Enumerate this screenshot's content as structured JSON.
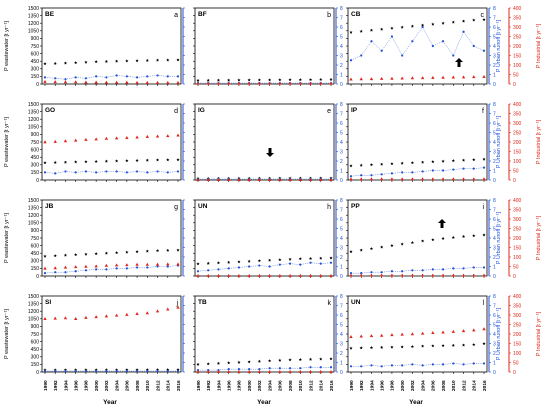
{
  "figure": {
    "y_left_label": "P wastewater [t yr⁻¹]",
    "y_right_blue_label": "P Urban runoff [t yr⁻¹]",
    "y_right_red_label": "P Industrial [t yr⁻¹]",
    "x_label": "Year",
    "colors": {
      "wastewater": "#000000",
      "urban": "#1f4fd6",
      "industrial": "#e0261b"
    }
  },
  "chart_data": [
    {
      "id": "BE",
      "letter": "a",
      "type": "scatter",
      "x": [
        1990,
        1992,
        1994,
        1996,
        1998,
        2000,
        2002,
        2004,
        2006,
        2008,
        2010,
        2012,
        2014,
        2016
      ],
      "xlim": [
        1990,
        2016
      ],
      "ylim_left": [
        0,
        1500
      ],
      "ylim_right_blue": [
        0,
        8
      ],
      "ylim_right_red": [
        0,
        400
      ],
      "series": [
        {
          "key": "wastewater",
          "axis": "left",
          "values": [
            400,
            405,
            412,
            420,
            430,
            440,
            445,
            450,
            455,
            460,
            465,
            470,
            472,
            475
          ]
        },
        {
          "key": "urban",
          "axis": "blue",
          "values": [
            0.7,
            0.6,
            0.5,
            0.7,
            0.6,
            0.8,
            0.7,
            0.9,
            0.8,
            0.7,
            0.8,
            0.9,
            0.8,
            0.8
          ]
        },
        {
          "key": "industrial",
          "axis": "red",
          "values": [
            12,
            11,
            10,
            10,
            9,
            9,
            8,
            8,
            8,
            7,
            7,
            7,
            7,
            7
          ]
        }
      ]
    },
    {
      "id": "BF",
      "letter": "b",
      "type": "scatter",
      "x": [
        1990,
        1992,
        1994,
        1996,
        1998,
        2000,
        2002,
        2004,
        2006,
        2008,
        2010,
        2012,
        2014,
        2016
      ],
      "xlim": [
        1990,
        2016
      ],
      "ylim_left": [
        0,
        1500
      ],
      "ylim_right_blue": [
        0,
        8
      ],
      "ylim_right_red": [
        0,
        400
      ],
      "series": [
        {
          "key": "wastewater",
          "axis": "left",
          "values": [
            70,
            72,
            74,
            75,
            77,
            78,
            80,
            80,
            82,
            83,
            85,
            86,
            88,
            90
          ]
        },
        {
          "key": "urban",
          "axis": "blue",
          "values": [
            0.1,
            0.1,
            0.1,
            0.1,
            0.1,
            0.1,
            0.1,
            0.1,
            0.1,
            0.1,
            0.1,
            0.1,
            0.1,
            0.1
          ]
        },
        {
          "key": "industrial",
          "axis": "red",
          "values": [
            3,
            3,
            3,
            3,
            3,
            3,
            3,
            3,
            3,
            3,
            3,
            3,
            3,
            3
          ]
        }
      ]
    },
    {
      "id": "CB",
      "letter": "c",
      "type": "scatter",
      "x": [
        1990,
        1992,
        1994,
        1996,
        1998,
        2000,
        2002,
        2004,
        2006,
        2008,
        2010,
        2012,
        2014,
        2016
      ],
      "xlim": [
        1990,
        2016
      ],
      "ylim_left": [
        0,
        1500
      ],
      "ylim_right_blue": [
        0,
        8
      ],
      "ylim_right_red": [
        0,
        400
      ],
      "series": [
        {
          "key": "wastewater",
          "axis": "left",
          "values": [
            1020,
            1040,
            1060,
            1080,
            1100,
            1120,
            1140,
            1160,
            1180,
            1200,
            1220,
            1240,
            1260,
            1270
          ]
        },
        {
          "key": "urban",
          "axis": "blue",
          "values": [
            2.5,
            3.0,
            4.5,
            3.5,
            5.0,
            3.0,
            4.5,
            6.0,
            4.0,
            4.5,
            3.0,
            5.5,
            4.0,
            3.5
          ]
        },
        {
          "key": "industrial",
          "axis": "red",
          "values": [
            25,
            26,
            27,
            28,
            29,
            30,
            31,
            32,
            33,
            34,
            35,
            36,
            37,
            38
          ]
        }
      ]
    },
    {
      "id": "GO",
      "letter": "d",
      "type": "scatter",
      "x": [
        1990,
        1992,
        1994,
        1996,
        1998,
        2000,
        2002,
        2004,
        2006,
        2008,
        2010,
        2012,
        2014,
        2016
      ],
      "xlim": [
        1990,
        2016
      ],
      "ylim_left": [
        0,
        1500
      ],
      "ylim_right_blue": [
        0,
        8
      ],
      "ylim_right_red": [
        0,
        400
      ],
      "series": [
        {
          "key": "wastewater",
          "axis": "left",
          "values": [
            340,
            345,
            350,
            355,
            360,
            365,
            370,
            375,
            380,
            385,
            390,
            395,
            398,
            400
          ]
        },
        {
          "key": "urban",
          "axis": "blue",
          "values": [
            0.8,
            0.7,
            0.9,
            0.8,
            0.9,
            0.8,
            0.9,
            0.9,
            0.8,
            0.9,
            0.8,
            0.9,
            0.8,
            0.9
          ]
        },
        {
          "key": "industrial",
          "axis": "red",
          "values": [
            200,
            202,
            205,
            208,
            212,
            215,
            218,
            220,
            222,
            225,
            228,
            230,
            232,
            235
          ]
        }
      ]
    },
    {
      "id": "IG",
      "letter": "e",
      "type": "scatter",
      "x": [
        1990,
        1992,
        1994,
        1996,
        1998,
        2000,
        2002,
        2004,
        2006,
        2008,
        2010,
        2012,
        2014,
        2016
      ],
      "xlim": [
        1990,
        2016
      ],
      "ylim_left": [
        0,
        1500
      ],
      "ylim_right_blue": [
        0,
        8
      ],
      "ylim_right_red": [
        0,
        400
      ],
      "series": [
        {
          "key": "wastewater",
          "axis": "left",
          "values": [
            30,
            30,
            31,
            31,
            32,
            32,
            33,
            33,
            34,
            34,
            35,
            35,
            36,
            36
          ]
        },
        {
          "key": "urban",
          "axis": "blue",
          "values": [
            0.1,
            0.1,
            0.1,
            0.1,
            0.1,
            0.1,
            0.1,
            0.1,
            0.1,
            0.1,
            0.1,
            0.1,
            0.1,
            0.1
          ]
        },
        {
          "key": "industrial",
          "axis": "red",
          "values": [
            1,
            1,
            1,
            1,
            1,
            1,
            1,
            1,
            1,
            1,
            1,
            1,
            1,
            1
          ]
        }
      ]
    },
    {
      "id": "IP",
      "letter": "f",
      "type": "scatter",
      "x": [
        1990,
        1992,
        1994,
        1996,
        1998,
        2000,
        2002,
        2004,
        2006,
        2008,
        2010,
        2012,
        2014,
        2016
      ],
      "xlim": [
        1990,
        2016
      ],
      "ylim_left": [
        0,
        1500
      ],
      "ylim_right_blue": [
        0,
        8
      ],
      "ylim_right_red": [
        0,
        400
      ],
      "series": [
        {
          "key": "wastewater",
          "axis": "left",
          "values": [
            280,
            290,
            300,
            310,
            320,
            330,
            340,
            350,
            360,
            370,
            380,
            390,
            400,
            410
          ]
        },
        {
          "key": "urban",
          "axis": "blue",
          "values": [
            0.4,
            0.5,
            0.5,
            0.6,
            0.7,
            0.8,
            0.8,
            0.9,
            1.0,
            1.0,
            1.1,
            1.2,
            1.2,
            1.3
          ]
        },
        {
          "key": "industrial",
          "axis": "red",
          "values": [
            5,
            5,
            5,
            5,
            5,
            5,
            5,
            5,
            5,
            5,
            5,
            5,
            5,
            5
          ]
        }
      ]
    },
    {
      "id": "JB",
      "letter": "g",
      "type": "scatter",
      "x": [
        1990,
        1992,
        1994,
        1996,
        1998,
        2000,
        2002,
        2004,
        2006,
        2008,
        2010,
        2012,
        2014,
        2016
      ],
      "xlim": [
        1990,
        2016
      ],
      "ylim_left": [
        0,
        1500
      ],
      "ylim_right_blue": [
        0,
        8
      ],
      "ylim_right_red": [
        0,
        400
      ],
      "series": [
        {
          "key": "wastewater",
          "axis": "left",
          "values": [
            390,
            400,
            410,
            420,
            430,
            440,
            450,
            460,
            470,
            480,
            490,
            500,
            505,
            510
          ]
        },
        {
          "key": "urban",
          "axis": "blue",
          "values": [
            0.3,
            0.4,
            0.4,
            0.5,
            0.6,
            0.7,
            0.7,
            0.8,
            0.8,
            0.9,
            0.9,
            1.0,
            1.0,
            1.1
          ]
        },
        {
          "key": "industrial",
          "axis": "red",
          "values": [
            40,
            42,
            45,
            48,
            50,
            52,
            55,
            57,
            58,
            60,
            60,
            61,
            62,
            62
          ]
        }
      ]
    },
    {
      "id": "UN",
      "letter": "h",
      "type": "scatter",
      "x": [
        1990,
        1992,
        1994,
        1996,
        1998,
        2000,
        2002,
        2004,
        2006,
        2008,
        2010,
        2012,
        2014,
        2016
      ],
      "xlim": [
        1990,
        2016
      ],
      "ylim_left": [
        0,
        1500
      ],
      "ylim_right_blue": [
        0,
        8
      ],
      "ylim_right_red": [
        0,
        400
      ],
      "series": [
        {
          "key": "wastewater",
          "axis": "left",
          "values": [
            240,
            250,
            260,
            270,
            280,
            290,
            300,
            310,
            320,
            330,
            340,
            345,
            350,
            355
          ]
        },
        {
          "key": "urban",
          "axis": "blue",
          "values": [
            0.5,
            0.6,
            0.7,
            0.8,
            0.9,
            1.0,
            1.1,
            1.0,
            1.2,
            1.3,
            1.2,
            1.4,
            1.3,
            1.4
          ]
        },
        {
          "key": "industrial",
          "axis": "red",
          "values": [
            2,
            2,
            2,
            2,
            2,
            2,
            2,
            2,
            2,
            2,
            2,
            2,
            2,
            2
          ]
        }
      ]
    },
    {
      "id": "PP",
      "letter": "i",
      "type": "scatter",
      "x": [
        1990,
        1992,
        1994,
        1996,
        1998,
        2000,
        2002,
        2004,
        2006,
        2008,
        2010,
        2012,
        2014,
        2016
      ],
      "xlim": [
        1990,
        2016
      ],
      "ylim_left": [
        0,
        1500
      ],
      "ylim_right_blue": [
        0,
        8
      ],
      "ylim_right_red": [
        0,
        400
      ],
      "series": [
        {
          "key": "wastewater",
          "axis": "left",
          "values": [
            480,
            510,
            540,
            570,
            600,
            630,
            660,
            690,
            715,
            740,
            760,
            780,
            795,
            810
          ]
        },
        {
          "key": "urban",
          "axis": "blue",
          "values": [
            0.3,
            0.3,
            0.4,
            0.4,
            0.5,
            0.5,
            0.6,
            0.6,
            0.7,
            0.7,
            0.8,
            0.8,
            0.9,
            0.9
          ]
        },
        {
          "key": "industrial",
          "axis": "red",
          "values": [
            4,
            4,
            4,
            4,
            4,
            4,
            4,
            4,
            4,
            4,
            4,
            4,
            4,
            4
          ]
        }
      ]
    },
    {
      "id": "SI",
      "letter": "j",
      "type": "scatter",
      "x": [
        1990,
        1992,
        1994,
        1996,
        1998,
        2000,
        2002,
        2004,
        2006,
        2008,
        2010,
        2012,
        2014,
        2016
      ],
      "xlim": [
        1990,
        2016
      ],
      "ylim_left": [
        0,
        1500
      ],
      "ylim_right_blue": [
        0,
        8
      ],
      "ylim_right_red": [
        0,
        400
      ],
      "series": [
        {
          "key": "wastewater",
          "axis": "left",
          "values": [
            40,
            40,
            41,
            41,
            42,
            42,
            43,
            43,
            44,
            44,
            45,
            45,
            46,
            46
          ]
        },
        {
          "key": "urban",
          "axis": "blue",
          "values": [
            0.1,
            0.1,
            0.1,
            0.1,
            0.1,
            0.1,
            0.1,
            0.1,
            0.1,
            0.1,
            0.1,
            0.1,
            0.1,
            0.1
          ]
        },
        {
          "key": "industrial",
          "axis": "red",
          "values": [
            280,
            282,
            284,
            280,
            286,
            290,
            294,
            298,
            302,
            306,
            310,
            320,
            330,
            340
          ]
        }
      ]
    },
    {
      "id": "TB",
      "letter": "k",
      "type": "scatter",
      "x": [
        1990,
        1992,
        1994,
        1996,
        1998,
        2000,
        2002,
        2004,
        2006,
        2008,
        2010,
        2012,
        2014,
        2016
      ],
      "xlim": [
        1990,
        2016
      ],
      "ylim_left": [
        0,
        1500
      ],
      "ylim_right_blue": [
        0,
        8
      ],
      "ylim_right_red": [
        0,
        400
      ],
      "series": [
        {
          "key": "wastewater",
          "axis": "left",
          "values": [
            150,
            160,
            170,
            180,
            190,
            200,
            210,
            220,
            230,
            240,
            245,
            250,
            255,
            260
          ]
        },
        {
          "key": "urban",
          "axis": "blue",
          "values": [
            0.2,
            0.2,
            0.2,
            0.3,
            0.3,
            0.3,
            0.3,
            0.4,
            0.4,
            0.4,
            0.4,
            0.5,
            0.5,
            0.5
          ]
        },
        {
          "key": "industrial",
          "axis": "red",
          "values": [
            2,
            2,
            2,
            2,
            2,
            2,
            2,
            2,
            2,
            2,
            2,
            2,
            2,
            2
          ]
        }
      ]
    },
    {
      "id": "UN",
      "letter": "l",
      "type": "scatter",
      "x": [
        1990,
        1992,
        1994,
        1996,
        1998,
        2000,
        2002,
        2004,
        2006,
        2008,
        2010,
        2012,
        2014,
        2016
      ],
      "xlim": [
        1990,
        2016
      ],
      "ylim_left": [
        0,
        1500
      ],
      "ylim_right_blue": [
        0,
        8
      ],
      "ylim_right_red": [
        0,
        400
      ],
      "series": [
        {
          "key": "wastewater",
          "axis": "left",
          "values": [
            470,
            475,
            480,
            485,
            490,
            495,
            500,
            510,
            515,
            520,
            525,
            530,
            540,
            560
          ]
        },
        {
          "key": "urban",
          "axis": "blue",
          "values": [
            0.6,
            0.6,
            0.7,
            0.6,
            0.7,
            0.7,
            0.8,
            0.7,
            0.8,
            0.8,
            0.9,
            0.8,
            0.9,
            0.9
          ]
        },
        {
          "key": "industrial",
          "axis": "red",
          "values": [
            185,
            188,
            190,
            192,
            195,
            198,
            200,
            203,
            206,
            209,
            212,
            216,
            220,
            226
          ]
        }
      ]
    }
  ]
}
